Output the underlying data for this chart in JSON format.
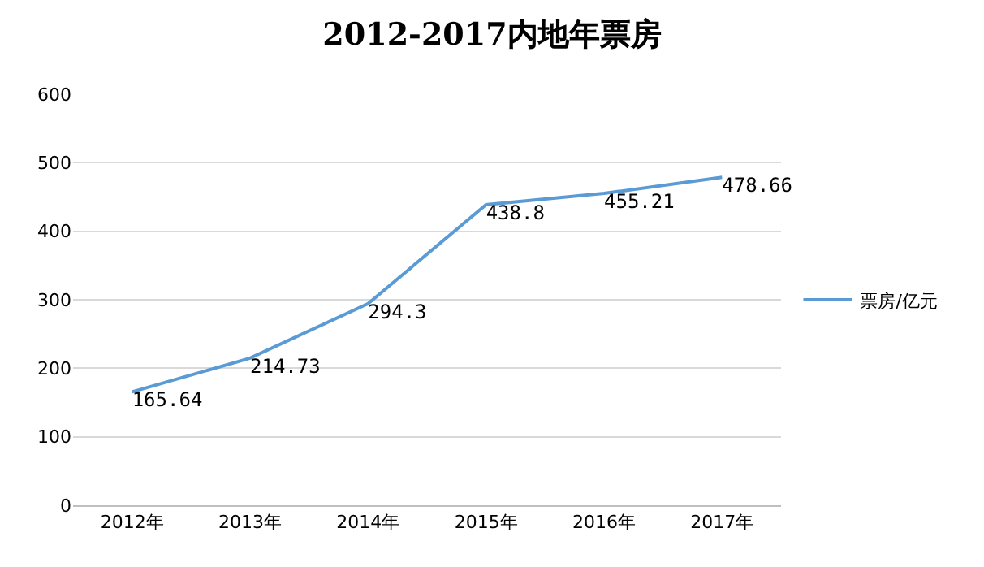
{
  "chart_data": {
    "type": "line",
    "title": "2012-2017内地年票房",
    "categories": [
      "2012年",
      "2013年",
      "2014年",
      "2015年",
      "2016年",
      "2017年"
    ],
    "series": [
      {
        "name": "票房/亿元",
        "color": "#5b9bd5",
        "values": [
          165.64,
          214.73,
          294.3,
          438.8,
          455.21,
          478.66
        ]
      }
    ],
    "ylim": [
      0,
      600
    ],
    "yticks": [
      0,
      100,
      200,
      300,
      400,
      500,
      600
    ],
    "grid": "y",
    "legend": "right",
    "data_labels": true,
    "marker": "none",
    "line_style": "solid"
  }
}
